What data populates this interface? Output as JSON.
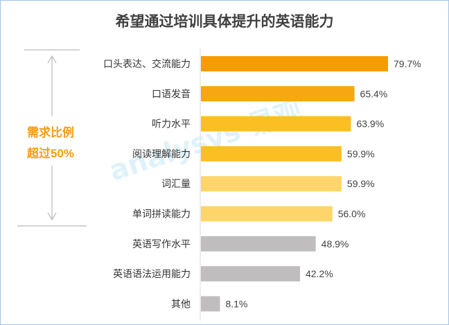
{
  "chart_data": {
    "type": "bar",
    "orientation": "horizontal",
    "title": "希望通过培训具体提升的英语能力",
    "categories": [
      "口头表达、交流能力",
      "口语发音",
      "听力水平",
      "阅读理解能力",
      "词汇量",
      "单词拼读能力",
      "英语写作水平",
      "英语语法运用能力",
      "其他"
    ],
    "values": [
      79.7,
      65.4,
      63.9,
      59.9,
      59.9,
      56.0,
      48.9,
      42.2,
      8.1
    ],
    "value_labels": [
      "79.7%",
      "65.4%",
      "63.9%",
      "59.9%",
      "59.9%",
      "56.0%",
      "48.9%",
      "42.2%",
      "8.1%"
    ],
    "bar_colors": [
      "#f59c00",
      "#f7a70f",
      "#fbbf24",
      "#fbbf24",
      "#fdd56a",
      "#fdd56a",
      "#bfbdbd",
      "#bfbdbd",
      "#bfbdbd"
    ],
    "xlim": [
      0,
      85
    ],
    "grid": false,
    "legend": "none"
  },
  "annotation": {
    "line1": "需求比例",
    "line2": "超过50%",
    "color": "#f39c12"
  },
  "watermark": "analysys 易观"
}
